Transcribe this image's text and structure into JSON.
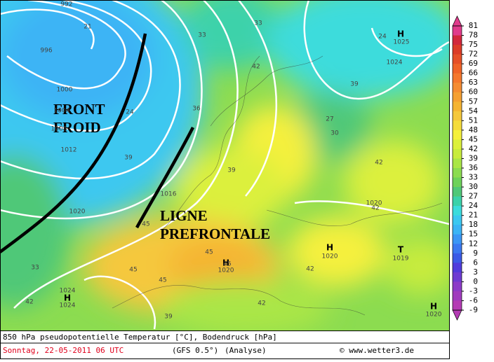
{
  "map": {
    "annotations": [
      "FRONT",
      "FROID",
      "LIGNE",
      "PREFRONTALE"
    ],
    "isobar_labels": [
      "992",
      "996",
      "1000",
      "1004",
      "1008",
      "1012",
      "1016",
      "1020",
      "1020",
      "1020",
      "1020",
      "1024",
      "1024",
      "1025",
      "1019",
      "1020",
      "1024"
    ],
    "centers": [
      "H",
      "H",
      "H",
      "T",
      "H",
      "H"
    ],
    "temperature_labels": [
      "21",
      "24",
      "24",
      "27",
      "30",
      "33",
      "33",
      "36",
      "39",
      "39",
      "39",
      "42",
      "42",
      "42",
      "42",
      "45",
      "45",
      "45",
      "45",
      "42",
      "39",
      "33",
      "45",
      "42"
    ]
  },
  "colorbar": {
    "labels": [
      81,
      78,
      75,
      72,
      69,
      66,
      63,
      60,
      57,
      54,
      51,
      48,
      45,
      42,
      39,
      36,
      33,
      30,
      27,
      24,
      21,
      18,
      15,
      12,
      9,
      6,
      3,
      0,
      -3,
      -6,
      -9
    ],
    "colors": [
      "#e03c8c",
      "#d2283c",
      "#dc3c28",
      "#e65028",
      "#f06428",
      "#f5782d",
      "#f58c32",
      "#f5a032",
      "#f5b432",
      "#f5c83c",
      "#f5dc3c",
      "#f5f03c",
      "#dcf03c",
      "#c8ec3c",
      "#aae646",
      "#8cdc50",
      "#6ed25a",
      "#50c878",
      "#3cd2aa",
      "#3cdcdc",
      "#3cc8f0",
      "#3cb4f5",
      "#3c96f5",
      "#3c78f0",
      "#3c5ae6",
      "#503cdc",
      "#6e3cd2",
      "#8c3cc8",
      "#a03cbe",
      "#b43cb4"
    ]
  },
  "footer": {
    "description": "850 hPa pseudopotentielle Temperatur [°C], Bodendruck [hPa]",
    "date": "Sonntag, 22-05-2011  06 UTC",
    "model": "(GFS 0.5°)",
    "run": "(Analyse)",
    "copyright": "© www.wetter3.de"
  }
}
